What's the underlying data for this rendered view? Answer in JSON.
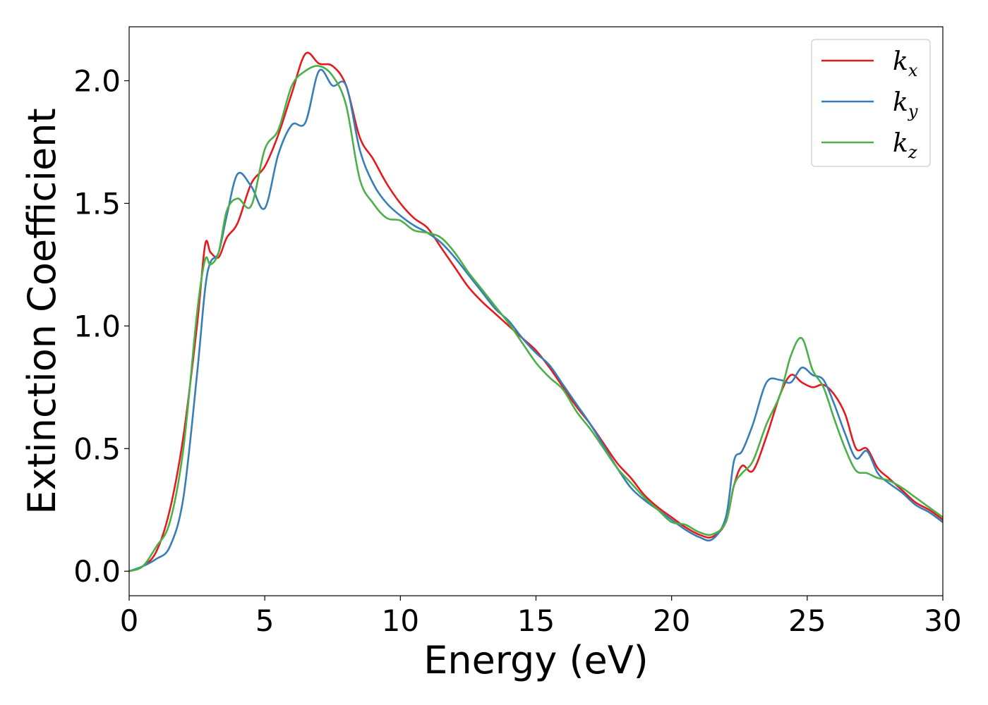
{
  "chart_data": {
    "type": "line",
    "title": "",
    "xlabel": "Energy (eV)",
    "ylabel": "Extinction Coefficient",
    "xlim": [
      0,
      30
    ],
    "ylim": [
      -0.1,
      2.22
    ],
    "xticks": [
      0,
      5,
      10,
      15,
      20,
      25,
      30
    ],
    "xtick_labels": [
      "0",
      "5",
      "10",
      "15",
      "20",
      "25",
      "30"
    ],
    "yticks": [
      0.0,
      0.5,
      1.0,
      1.5,
      2.0
    ],
    "ytick_labels": [
      "0.0",
      "0.5",
      "1.0",
      "1.5",
      "2.0"
    ],
    "grid": false,
    "legend_position": "top-right",
    "series": [
      {
        "name": "k_x",
        "legend_base": "k",
        "legend_sub": "x",
        "color": "#e41a1c",
        "x": [
          0,
          0.5,
          1.0,
          1.5,
          2.0,
          2.5,
          2.8,
          3.0,
          3.3,
          3.6,
          4.0,
          4.5,
          5.0,
          5.5,
          6.0,
          6.5,
          7.0,
          7.5,
          8.0,
          8.5,
          9.0,
          9.5,
          10.0,
          10.5,
          11.0,
          11.5,
          12.0,
          12.5,
          13.0,
          13.5,
          14.0,
          14.5,
          15.0,
          15.5,
          16.0,
          16.5,
          17.0,
          17.5,
          18.0,
          18.5,
          19.0,
          19.5,
          20.0,
          20.5,
          21.0,
          21.5,
          22.0,
          22.3,
          22.6,
          23.0,
          23.5,
          24.0,
          24.4,
          24.8,
          25.2,
          25.6,
          26.0,
          26.4,
          26.8,
          27.2,
          27.6,
          28.0,
          28.5,
          29.0,
          29.5,
          30.0
        ],
        "y": [
          0.0,
          0.02,
          0.08,
          0.25,
          0.55,
          1.0,
          1.33,
          1.3,
          1.28,
          1.36,
          1.42,
          1.58,
          1.65,
          1.78,
          1.95,
          2.11,
          2.07,
          2.06,
          1.98,
          1.77,
          1.68,
          1.58,
          1.5,
          1.44,
          1.4,
          1.32,
          1.24,
          1.16,
          1.1,
          1.05,
          1.0,
          0.95,
          0.9,
          0.83,
          0.75,
          0.67,
          0.6,
          0.52,
          0.44,
          0.38,
          0.31,
          0.26,
          0.22,
          0.18,
          0.15,
          0.14,
          0.2,
          0.35,
          0.43,
          0.41,
          0.55,
          0.72,
          0.8,
          0.77,
          0.75,
          0.76,
          0.72,
          0.64,
          0.5,
          0.5,
          0.42,
          0.38,
          0.33,
          0.28,
          0.25,
          0.21
        ]
      },
      {
        "name": "k_y",
        "legend_base": "k",
        "legend_sub": "y",
        "color": "#377eb8",
        "x": [
          0,
          0.5,
          1.0,
          1.5,
          2.0,
          2.5,
          2.8,
          3.0,
          3.3,
          3.6,
          4.0,
          4.5,
          5.0,
          5.5,
          6.0,
          6.5,
          7.0,
          7.5,
          8.0,
          8.5,
          9.0,
          9.5,
          10.0,
          10.5,
          11.0,
          11.5,
          12.0,
          12.5,
          13.0,
          13.5,
          14.0,
          14.5,
          15.0,
          15.5,
          16.0,
          16.5,
          17.0,
          17.5,
          18.0,
          18.5,
          19.0,
          19.5,
          20.0,
          20.5,
          21.0,
          21.5,
          22.0,
          22.3,
          22.6,
          23.0,
          23.5,
          24.0,
          24.4,
          24.8,
          25.2,
          25.6,
          26.0,
          26.4,
          26.8,
          27.2,
          27.6,
          28.0,
          28.5,
          29.0,
          29.5,
          30.0
        ],
        "y": [
          0.0,
          0.02,
          0.05,
          0.1,
          0.3,
          0.8,
          1.15,
          1.26,
          1.3,
          1.45,
          1.62,
          1.57,
          1.48,
          1.7,
          1.82,
          1.83,
          2.04,
          1.98,
          1.98,
          1.72,
          1.58,
          1.5,
          1.45,
          1.41,
          1.38,
          1.34,
          1.28,
          1.21,
          1.14,
          1.07,
          1.02,
          0.95,
          0.89,
          0.84,
          0.76,
          0.68,
          0.6,
          0.51,
          0.42,
          0.34,
          0.29,
          0.25,
          0.21,
          0.17,
          0.14,
          0.13,
          0.22,
          0.45,
          0.49,
          0.6,
          0.77,
          0.78,
          0.77,
          0.83,
          0.8,
          0.78,
          0.68,
          0.56,
          0.46,
          0.49,
          0.4,
          0.36,
          0.32,
          0.27,
          0.24,
          0.2
        ]
      },
      {
        "name": "k_z",
        "legend_base": "k",
        "legend_sub": "z",
        "color": "#4daf4a",
        "x": [
          0,
          0.5,
          1.0,
          1.5,
          2.0,
          2.5,
          2.8,
          3.0,
          3.3,
          3.6,
          4.0,
          4.5,
          5.0,
          5.5,
          6.0,
          6.5,
          7.0,
          7.5,
          8.0,
          8.5,
          9.0,
          9.5,
          10.0,
          10.5,
          11.0,
          11.5,
          12.0,
          12.5,
          13.0,
          13.5,
          14.0,
          14.5,
          15.0,
          15.5,
          16.0,
          16.5,
          17.0,
          17.5,
          18.0,
          18.5,
          19.0,
          19.5,
          20.0,
          20.5,
          21.0,
          21.5,
          22.0,
          22.3,
          22.6,
          23.0,
          23.5,
          24.0,
          24.4,
          24.8,
          25.2,
          25.6,
          26.0,
          26.4,
          26.8,
          27.2,
          27.6,
          28.0,
          28.5,
          29.0,
          29.5,
          30.0
        ],
        "y": [
          0.0,
          0.02,
          0.1,
          0.2,
          0.5,
          1.05,
          1.27,
          1.25,
          1.3,
          1.47,
          1.52,
          1.49,
          1.72,
          1.8,
          1.98,
          2.04,
          2.06,
          2.02,
          1.9,
          1.6,
          1.5,
          1.44,
          1.43,
          1.39,
          1.38,
          1.36,
          1.3,
          1.22,
          1.15,
          1.08,
          1.01,
          0.93,
          0.85,
          0.79,
          0.74,
          0.65,
          0.58,
          0.5,
          0.42,
          0.36,
          0.3,
          0.25,
          0.2,
          0.19,
          0.16,
          0.15,
          0.2,
          0.35,
          0.4,
          0.45,
          0.6,
          0.72,
          0.88,
          0.95,
          0.82,
          0.75,
          0.62,
          0.5,
          0.41,
          0.4,
          0.38,
          0.37,
          0.34,
          0.3,
          0.26,
          0.22
        ]
      }
    ]
  }
}
